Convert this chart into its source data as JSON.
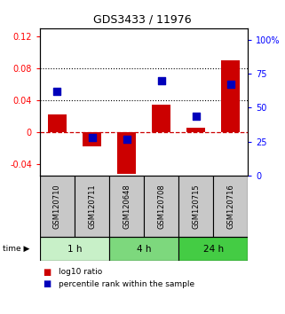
{
  "title": "GDS3433 / 11976",
  "samples": [
    "GSM120710",
    "GSM120711",
    "GSM120648",
    "GSM120708",
    "GSM120715",
    "GSM120716"
  ],
  "log10_ratio": [
    0.022,
    -0.018,
    -0.052,
    0.034,
    0.005,
    0.09
  ],
  "percentile_rank": [
    0.62,
    0.28,
    0.27,
    0.7,
    0.44,
    0.67
  ],
  "groups": [
    {
      "label": "1 h",
      "indices": [
        0,
        1
      ],
      "color": "#c8f0c8"
    },
    {
      "label": "4 h",
      "indices": [
        2,
        3
      ],
      "color": "#7dd87d"
    },
    {
      "label": "24 h",
      "indices": [
        4,
        5
      ],
      "color": "#44cc44"
    }
  ],
  "ylim_left": [
    -0.055,
    0.13
  ],
  "ylim_right": [
    0,
    1.0833
  ],
  "yticks_left": [
    -0.04,
    0.0,
    0.04,
    0.08,
    0.12
  ],
  "ytick_labels_left": [
    "-0.04",
    "0",
    "0.04",
    "0.08",
    "0.12"
  ],
  "yticks_right": [
    0.0,
    0.25,
    0.5,
    0.75,
    1.0
  ],
  "ytick_labels_right": [
    "0",
    "25",
    "50",
    "75",
    "100%"
  ],
  "hlines": [
    0.04,
    0.08
  ],
  "bar_color": "#cc0000",
  "dot_color": "#0000bb",
  "zero_line_color": "#cc0000",
  "bg_color": "white",
  "plot_bg": "white",
  "tick_fontsize": 7,
  "bar_width": 0.55,
  "dot_size": 30,
  "sample_bg": "#c8c8c8",
  "title_fontsize": 9
}
